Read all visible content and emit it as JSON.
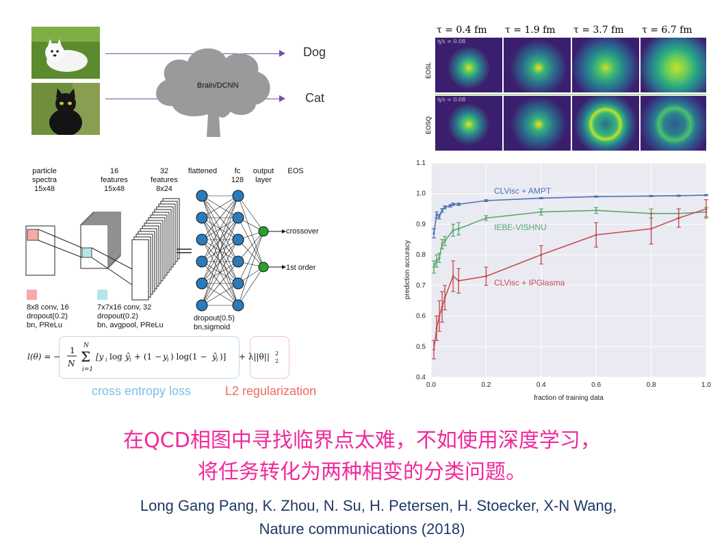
{
  "classifier": {
    "brain_label": "Brain/DCNN",
    "out_labels": [
      "Dog",
      "Cat"
    ],
    "photo_icons": [
      "dog-photo-icon",
      "cat-photo-icon"
    ]
  },
  "network": {
    "headers": [
      {
        "text": "particle\nspectra\n15x48"
      },
      {
        "text": "16\nfeatures\n15x48"
      },
      {
        "text": "32\nfeatures\n8x24"
      },
      {
        "text": "flattened"
      },
      {
        "text": "fc\n128"
      },
      {
        "text": "output\nlayer"
      },
      {
        "text": "EOS"
      }
    ],
    "outputs": [
      "crossover",
      "1st order"
    ],
    "legend": [
      {
        "color": "#f5aaa9",
        "text": "8x8 conv, 16\ndropout(0.2)\nbn, PReLu"
      },
      {
        "color": "#b4e6e6",
        "text": "7x7x16 conv, 32\ndropout(0.2)\nbn, avgpool, PReLu"
      }
    ],
    "dense_note": "dropout(0.5)\nbn,sigmoid",
    "loss_label": "cross entropy loss",
    "reg_label": "L2 regularization",
    "loss_color": "#7cbfe8",
    "reg_color": "#ef6a5e"
  },
  "heatmaps": {
    "taus": [
      "τ = 0.4 fm",
      "τ = 1.9 fm",
      "τ = 3.7 fm",
      "τ = 6.7 fm"
    ],
    "rows": [
      {
        "label": "EOSL",
        "note": "η/s = 0.08"
      },
      {
        "label": "EOSQ",
        "note": "η/s = 0.08"
      }
    ]
  },
  "chart_data": {
    "type": "line",
    "xlabel": "fraction of training data",
    "ylabel": "prediction accuracy",
    "xlim": [
      0.0,
      1.0
    ],
    "ylim": [
      0.4,
      1.1
    ],
    "xticks": [
      "0.0",
      "0.2",
      "0.4",
      "0.6",
      "0.8",
      "1.0"
    ],
    "yticks": [
      "0.4",
      "0.5",
      "0.6",
      "0.7",
      "0.8",
      "0.9",
      "1.0",
      "1.1"
    ],
    "grid": true,
    "series": [
      {
        "name": "CLVisc + AMPT",
        "color": "#4c72b0",
        "x": [
          0.01,
          0.02,
          0.03,
          0.04,
          0.05,
          0.07,
          0.08,
          0.1,
          0.2,
          0.4,
          0.6,
          0.8,
          0.9,
          1.0
        ],
        "y": [
          0.87,
          0.93,
          0.925,
          0.945,
          0.955,
          0.96,
          0.965,
          0.965,
          0.977,
          0.985,
          0.99,
          0.992,
          0.993,
          0.995
        ],
        "err": [
          0.015,
          0.01,
          0.008,
          0.006,
          0.005,
          0.004,
          0.004,
          0.004,
          0.003,
          0.002,
          0.002,
          0.002,
          0.002,
          0.002
        ]
      },
      {
        "name": "IEBE-VISHNU",
        "color": "#55a868",
        "x": [
          0.01,
          0.02,
          0.03,
          0.04,
          0.05,
          0.08,
          0.1,
          0.2,
          0.4,
          0.6,
          0.8,
          0.9,
          1.0
        ],
        "y": [
          0.76,
          0.78,
          0.79,
          0.835,
          0.845,
          0.88,
          0.885,
          0.92,
          0.94,
          0.945,
          0.935,
          0.935,
          0.94
        ],
        "err": [
          0.02,
          0.02,
          0.015,
          0.015,
          0.015,
          0.02,
          0.02,
          0.008,
          0.01,
          0.01,
          0.015,
          0.015,
          0.015
        ]
      },
      {
        "name": "CLVisc + IPGlasma",
        "color": "#c44e52",
        "x": [
          0.01,
          0.02,
          0.03,
          0.04,
          0.05,
          0.08,
          0.1,
          0.2,
          0.4,
          0.6,
          0.8,
          0.9,
          1.0
        ],
        "y": [
          0.49,
          0.56,
          0.6,
          0.63,
          0.66,
          0.73,
          0.715,
          0.73,
          0.8,
          0.865,
          0.885,
          0.92,
          0.95
        ],
        "err": [
          0.03,
          0.04,
          0.05,
          0.05,
          0.04,
          0.05,
          0.04,
          0.03,
          0.03,
          0.04,
          0.05,
          0.03,
          0.03
        ]
      }
    ]
  },
  "caption": {
    "line1": "在QCD相图中寻找临界点太难，不如使用深度学习，",
    "line2": "将任务转化为两种相变的分类问题。"
  },
  "citation": {
    "line1": "Long Gang Pang, K. Zhou, N. Su, H. Petersen, H. Stoecker, X-N Wang,",
    "line2": "Nature communications (2018)"
  }
}
